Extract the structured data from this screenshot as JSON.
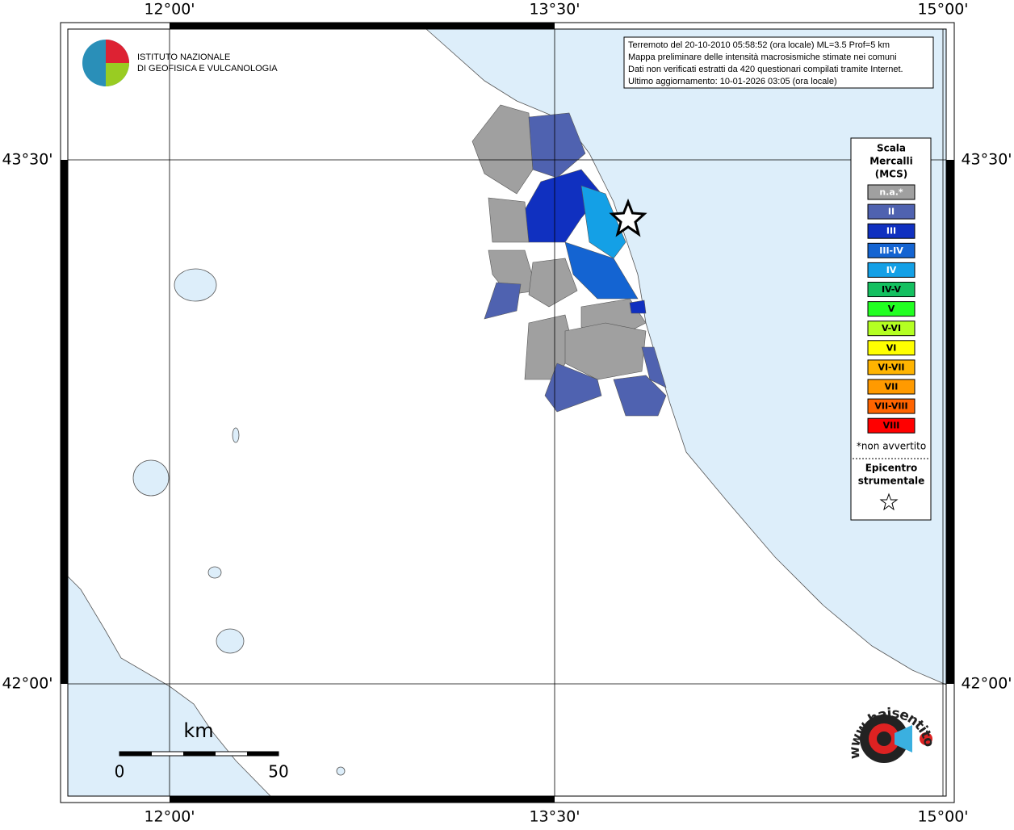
{
  "map": {
    "lon_labels": [
      "12°00'",
      "13°30'",
      "15°00'"
    ],
    "lat_labels": [
      "43°30'",
      "42°00'"
    ]
  },
  "info": [
    "Terremoto del 20-10-2010 05:58:52 (ora locale) ML=3.5 Prof=5 km",
    "Mappa preliminare delle intensità macrosismiche stimate nei comuni",
    "Dati non verificati estratti da 420 questionari compilati tramite Internet.",
    "Ultimo aggiornamento: 10-01-2026 03:05 (ora locale)"
  ],
  "logo": [
    "ISTITUTO NAZIONALE",
    "DI GEOFISICA E VULCANOLOGIA"
  ],
  "legend": {
    "title": [
      "Scala",
      "Mercalli",
      "(MCS)"
    ],
    "classes": [
      {
        "label": "n.a.*",
        "color": "#a0a0a0"
      },
      {
        "label": "II",
        "color": "#4f62b0"
      },
      {
        "label": "III",
        "color": "#1030c0"
      },
      {
        "label": "III-IV",
        "color": "#1464d2"
      },
      {
        "label": "IV",
        "color": "#14a0e6"
      },
      {
        "label": "IV-V",
        "color": "#14c060"
      },
      {
        "label": "V",
        "color": "#22ff22"
      },
      {
        "label": "V-VI",
        "color": "#b4ff22"
      },
      {
        "label": "VI",
        "color": "#ffff00"
      },
      {
        "label": "VI-VII",
        "color": "#ffb400"
      },
      {
        "label": "VII",
        "color": "#ff9a00"
      },
      {
        "label": "VII-VIII",
        "color": "#ff6400"
      },
      {
        "label": "VIII",
        "color": "#ff0000"
      }
    ],
    "note": "*non avvertito",
    "epicenter": [
      "Epicentro",
      "strumentale"
    ]
  },
  "scale_bar": {
    "unit": "km",
    "ticks": [
      0,
      50
    ]
  },
  "site": "www.haisentitoilterremoto.it"
}
